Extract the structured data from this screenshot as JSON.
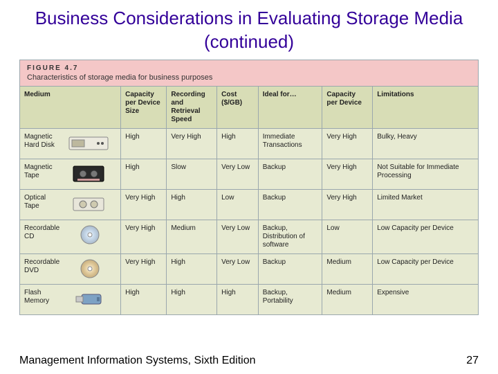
{
  "title": "Business Considerations in Evaluating Storage Media (continued)",
  "figure_number": "FIGURE 4.7",
  "figure_caption": "Characteristics of storage media for business purposes",
  "footer": "Management Information Systems, Sixth Edition",
  "page_number": "27",
  "colors": {
    "title": "#330099",
    "fig_header_bg": "#f4c7c7",
    "th_bg": "#d8ddb6",
    "td_bg": "#e7ead2",
    "border": "#9aa7ad"
  },
  "columns": [
    {
      "key": "medium",
      "label": "Medium",
      "width": "22%"
    },
    {
      "key": "capacity_size",
      "label": "Capacity per Device Size",
      "width": "10%"
    },
    {
      "key": "speed",
      "label": "Recording and Retrieval Speed",
      "width": "11%"
    },
    {
      "key": "cost",
      "label": "Cost ($/GB)",
      "width": "9%"
    },
    {
      "key": "ideal",
      "label": "Ideal for…",
      "width": "14%"
    },
    {
      "key": "cap_device",
      "label": "Capacity per Device",
      "width": "11%"
    },
    {
      "key": "limitations",
      "label": "Limitations",
      "width": "23%"
    }
  ],
  "rows": [
    {
      "medium": "Magnetic Hard Disk",
      "icon": "hard-disk",
      "capacity_size": "High",
      "speed": "Very High",
      "cost": "High",
      "ideal": "Immediate Transactions",
      "cap_device": "Very High",
      "limitations": "Bulky, Heavy"
    },
    {
      "medium": "Magnetic Tape",
      "icon": "tape",
      "capacity_size": "High",
      "speed": "Slow",
      "cost": "Very Low",
      "ideal": "Backup",
      "cap_device": "Very High",
      "limitations": "Not Suitable for Immediate Processing"
    },
    {
      "medium": "Optical Tape",
      "icon": "optical-tape",
      "capacity_size": "Very High",
      "speed": "High",
      "cost": "Low",
      "ideal": "Backup",
      "cap_device": "Very High",
      "limitations": "Limited Market"
    },
    {
      "medium": "Recordable CD",
      "icon": "cd",
      "capacity_size": "Very High",
      "speed": "Medium",
      "cost": "Very Low",
      "ideal": "Backup, Distribution of software",
      "cap_device": "Low",
      "limitations": "Low Capacity per Device"
    },
    {
      "medium": "Recordable DVD",
      "icon": "dvd",
      "capacity_size": "Very High",
      "speed": "High",
      "cost": "Very Low",
      "ideal": "Backup",
      "cap_device": "Medium",
      "limitations": "Low Capacity per Device"
    },
    {
      "medium": "Flash Memory",
      "icon": "flash",
      "capacity_size": "High",
      "speed": "High",
      "cost": "High",
      "ideal": "Backup, Portability",
      "cap_device": "Medium",
      "limitations": "Expensive"
    }
  ]
}
